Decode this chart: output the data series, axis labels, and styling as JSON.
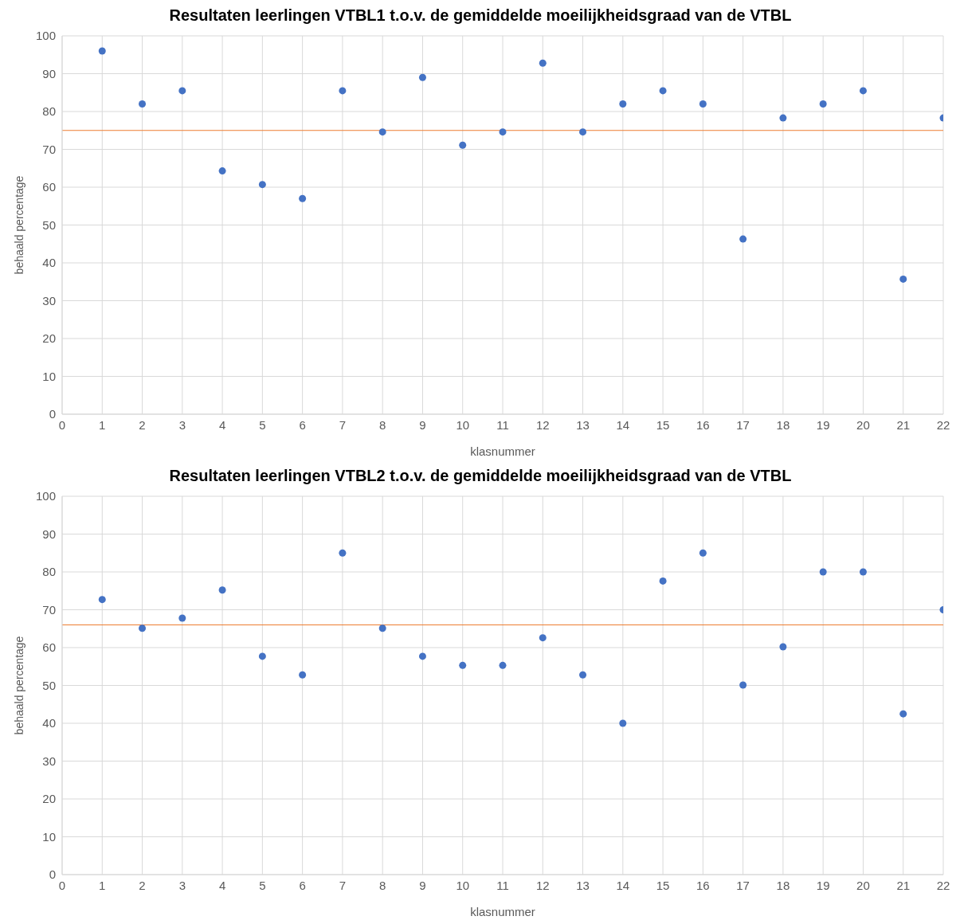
{
  "chart_data": [
    {
      "type": "scatter",
      "title": "Resultaten leerlingen VTBL1 t.o.v. de gemiddelde moeilijkheidsgraad van de VTBL",
      "xlabel": "klasnummer",
      "ylabel": "behaald percentage",
      "x": [
        1,
        2,
        3,
        4,
        5,
        6,
        7,
        8,
        9,
        10,
        11,
        12,
        13,
        14,
        15,
        16,
        17,
        18,
        19,
        20,
        21,
        22
      ],
      "series": [
        {
          "color": "#4472c4",
          "values": [
            96,
            82,
            85.5,
            64.3,
            60.7,
            57,
            85.5,
            74.6,
            89,
            71.1,
            74.6,
            92.8,
            74.6,
            82,
            85.5,
            82,
            46.3,
            78.3,
            82,
            85.5,
            35.7,
            78.3
          ]
        }
      ],
      "ref_lines": [
        {
          "axis": "y",
          "value": 75,
          "color": "#ed7d31"
        }
      ],
      "xlim": [
        0,
        22
      ],
      "xticks": [
        0,
        1,
        2,
        3,
        4,
        5,
        6,
        7,
        8,
        9,
        10,
        11,
        12,
        13,
        14,
        15,
        16,
        17,
        18,
        19,
        20,
        21,
        22
      ],
      "ylim": [
        0,
        100
      ],
      "yticks": [
        0,
        10,
        20,
        30,
        40,
        50,
        60,
        70,
        80,
        90,
        100
      ],
      "grid": true,
      "marker": "circle"
    },
    {
      "type": "scatter",
      "title": "Resultaten leerlingen VTBL2 t.o.v. de gemiddelde moeilijkheidsgraad van de VTBL",
      "xlabel": "klasnummer",
      "ylabel": "behaald percentage",
      "x": [
        1,
        2,
        3,
        4,
        5,
        6,
        7,
        8,
        9,
        10,
        11,
        12,
        13,
        14,
        15,
        16,
        17,
        18,
        19,
        20,
        21,
        22
      ],
      "series": [
        {
          "color": "#4472c4",
          "values": [
            72.7,
            65.1,
            67.8,
            75.2,
            57.7,
            52.8,
            85,
            65.1,
            57.7,
            55.3,
            55.3,
            62.6,
            52.8,
            40,
            77.6,
            85,
            50.1,
            60.2,
            80,
            80,
            42.5,
            70
          ]
        }
      ],
      "ref_lines": [
        {
          "axis": "y",
          "value": 66,
          "color": "#ed7d31"
        }
      ],
      "xlim": [
        0,
        22
      ],
      "xticks": [
        0,
        1,
        2,
        3,
        4,
        5,
        6,
        7,
        8,
        9,
        10,
        11,
        12,
        13,
        14,
        15,
        16,
        17,
        18,
        19,
        20,
        21,
        22
      ],
      "ylim": [
        0,
        100
      ],
      "yticks": [
        0,
        10,
        20,
        30,
        40,
        50,
        60,
        70,
        80,
        90,
        100
      ],
      "grid": true,
      "marker": "circle"
    }
  ]
}
